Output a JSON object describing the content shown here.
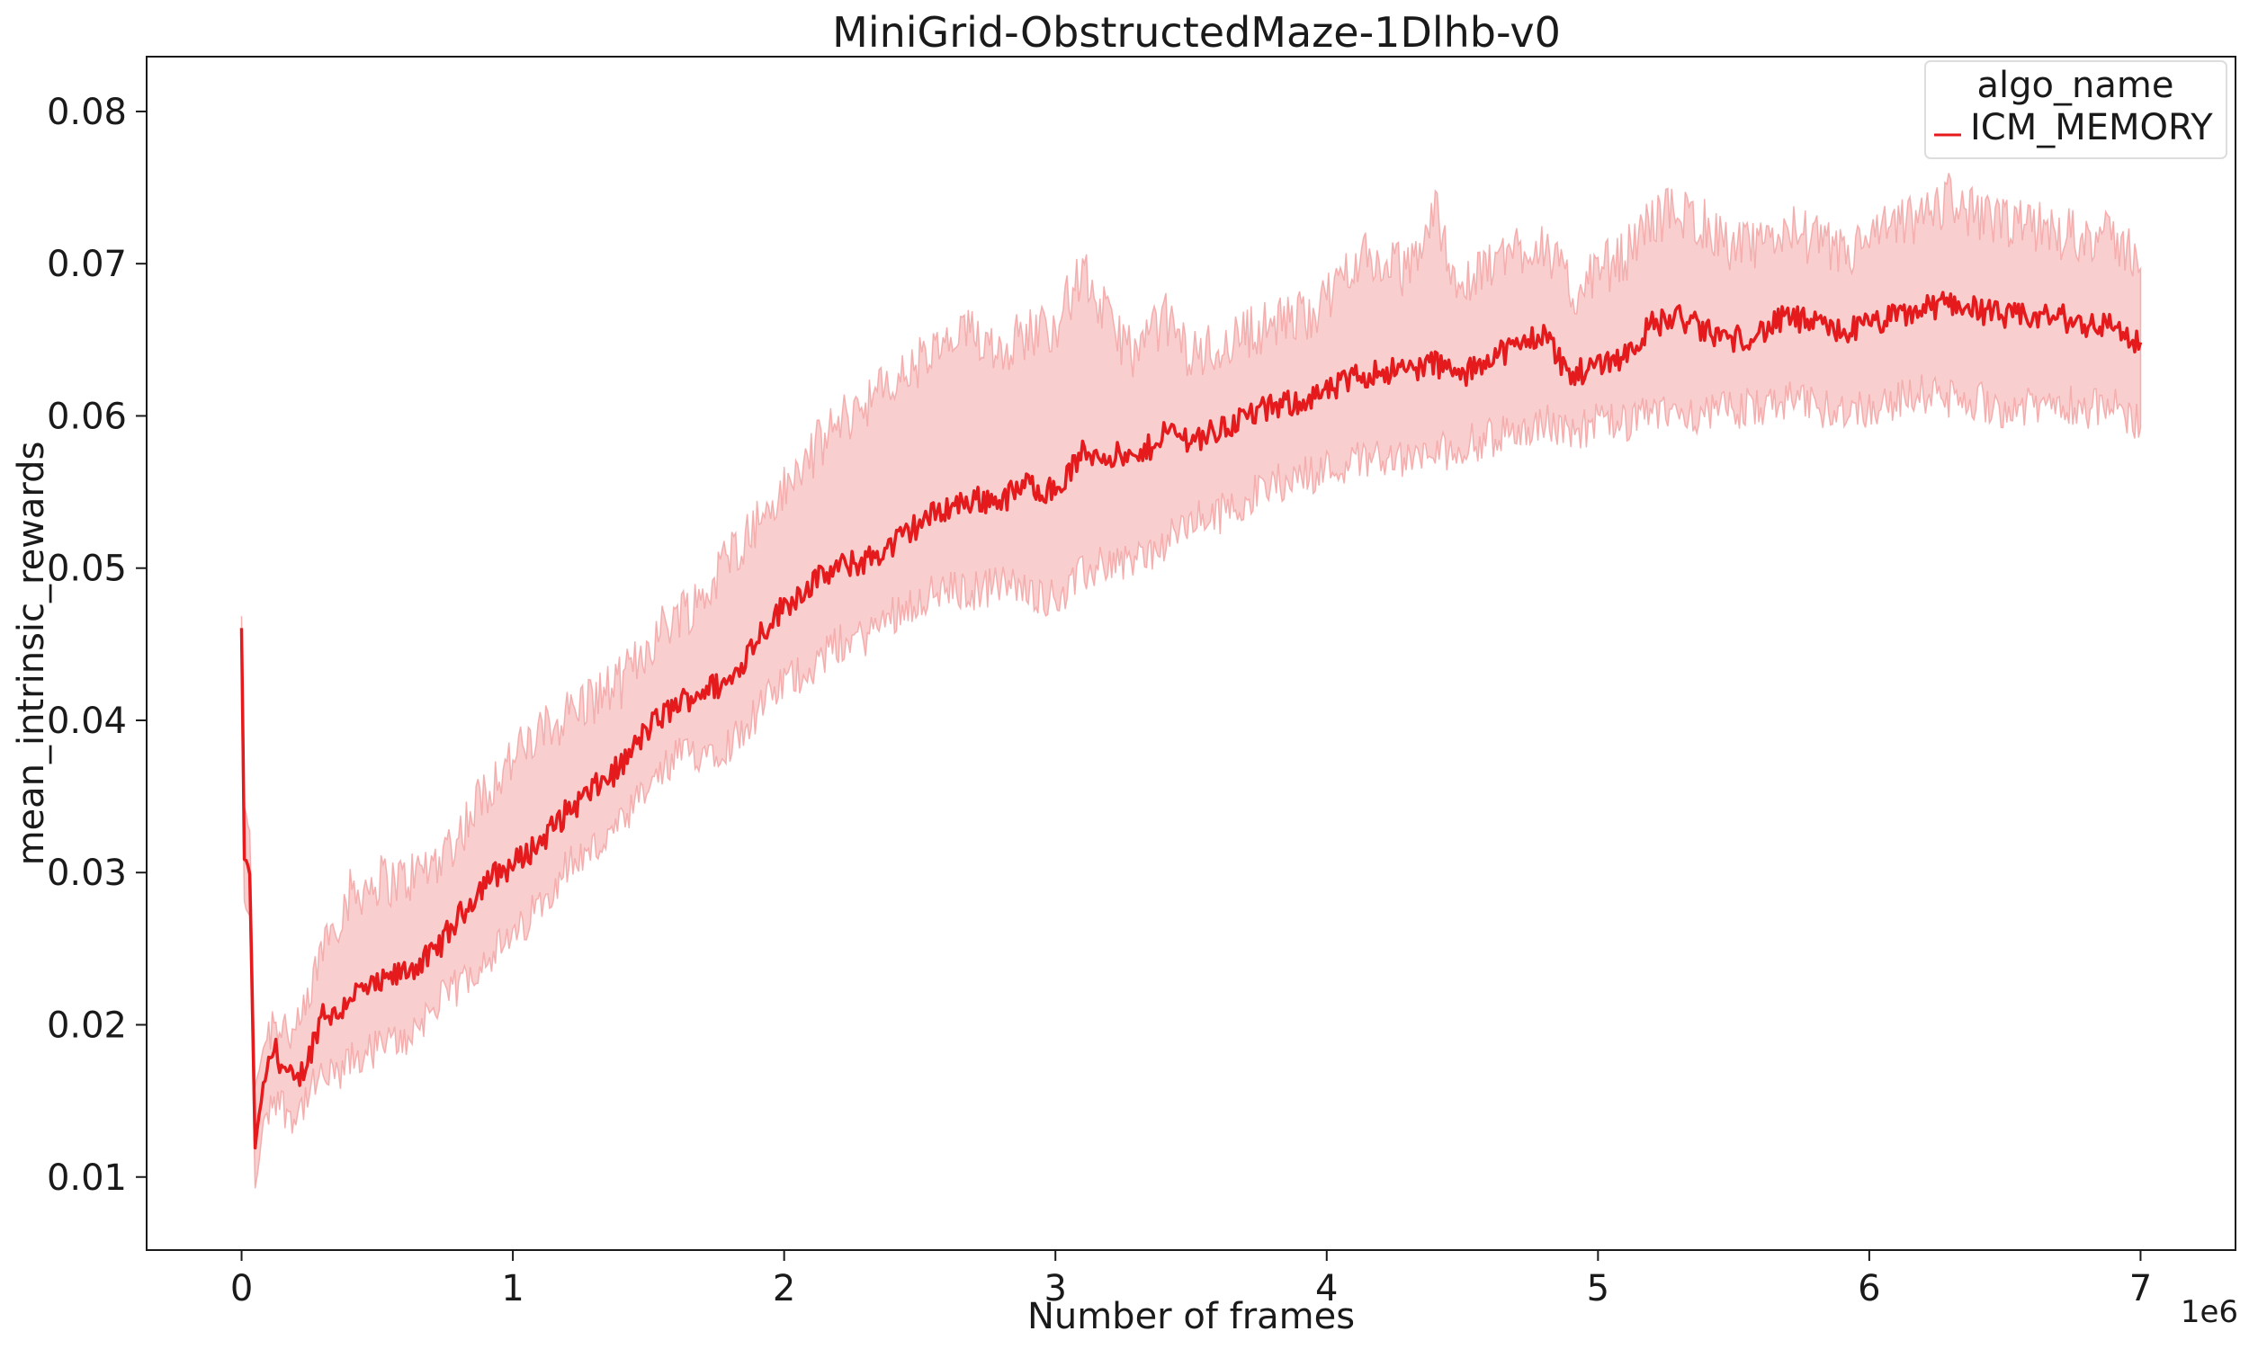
{
  "chart_data": {
    "type": "line",
    "title": "MiniGrid-ObstructedMaze-1Dlhb-v0",
    "xlabel": "Number of frames",
    "ylabel": "mean_intrinsic_rewards",
    "x_offset_label": "1e6",
    "xlim": [
      -0.35,
      7.35
    ],
    "ylim": [
      0.0052,
      0.0836
    ],
    "x_ticks": [
      0,
      1,
      2,
      3,
      4,
      5,
      6,
      7
    ],
    "x_tick_labels": [
      "0",
      "1",
      "2",
      "3",
      "4",
      "5",
      "6",
      "7"
    ],
    "y_ticks": [
      0.01,
      0.02,
      0.03,
      0.04,
      0.05,
      0.06,
      0.07,
      0.08
    ],
    "y_tick_labels": [
      "0.01",
      "0.02",
      "0.03",
      "0.04",
      "0.05",
      "0.06",
      "0.07",
      "0.08"
    ],
    "grid": false,
    "legend": {
      "title": "algo_name",
      "position": "top-right"
    },
    "colors": {
      "line": "#e41a1c",
      "band": "#f4a6a6"
    },
    "series": [
      {
        "name": "ICM_MEMORY",
        "x": [
          0.0,
          0.01,
          0.03,
          0.05,
          0.08,
          0.12,
          0.16,
          0.2,
          0.25,
          0.3,
          0.35,
          0.4,
          0.5,
          0.6,
          0.7,
          0.8,
          0.9,
          1.0,
          1.1,
          1.2,
          1.3,
          1.4,
          1.5,
          1.6,
          1.7,
          1.8,
          1.9,
          2.0,
          2.1,
          2.2,
          2.3,
          2.4,
          2.5,
          2.6,
          2.7,
          2.8,
          2.9,
          3.0,
          3.1,
          3.2,
          3.3,
          3.4,
          3.5,
          3.6,
          3.7,
          3.8,
          3.9,
          4.0,
          4.1,
          4.2,
          4.3,
          4.4,
          4.5,
          4.6,
          4.7,
          4.8,
          4.9,
          5.0,
          5.1,
          5.2,
          5.3,
          5.4,
          5.5,
          5.6,
          5.7,
          5.8,
          5.9,
          6.0,
          6.1,
          6.2,
          6.3,
          6.4,
          6.5,
          6.6,
          6.7,
          6.8,
          6.9,
          7.0
        ],
        "y": [
          0.046,
          0.031,
          0.03,
          0.012,
          0.016,
          0.0185,
          0.017,
          0.016,
          0.018,
          0.021,
          0.0205,
          0.022,
          0.0225,
          0.0235,
          0.0245,
          0.027,
          0.0295,
          0.0305,
          0.032,
          0.034,
          0.0355,
          0.037,
          0.0395,
          0.041,
          0.042,
          0.0425,
          0.0455,
          0.0475,
          0.049,
          0.05,
          0.0505,
          0.0515,
          0.053,
          0.054,
          0.0545,
          0.0545,
          0.0555,
          0.055,
          0.0575,
          0.0575,
          0.057,
          0.059,
          0.0585,
          0.059,
          0.06,
          0.0605,
          0.061,
          0.0615,
          0.0625,
          0.063,
          0.063,
          0.0635,
          0.0625,
          0.064,
          0.0645,
          0.0655,
          0.0625,
          0.0635,
          0.064,
          0.066,
          0.0665,
          0.0655,
          0.065,
          0.0655,
          0.0665,
          0.066,
          0.0655,
          0.066,
          0.0665,
          0.067,
          0.0675,
          0.067,
          0.0665,
          0.0665,
          0.0665,
          0.066,
          0.066,
          0.0645
        ],
        "lower": [
          0.041,
          0.028,
          0.027,
          0.009,
          0.0135,
          0.0155,
          0.0145,
          0.014,
          0.0155,
          0.0165,
          0.0165,
          0.0175,
          0.0185,
          0.019,
          0.021,
          0.0225,
          0.0245,
          0.0255,
          0.028,
          0.0305,
          0.0315,
          0.033,
          0.0355,
          0.0375,
          0.038,
          0.0385,
          0.0405,
          0.0425,
          0.0435,
          0.045,
          0.0455,
          0.047,
          0.048,
          0.0485,
          0.0485,
          0.049,
          0.0485,
          0.048,
          0.0495,
          0.0505,
          0.0505,
          0.0515,
          0.053,
          0.0535,
          0.0545,
          0.0555,
          0.056,
          0.0565,
          0.057,
          0.0575,
          0.057,
          0.0575,
          0.058,
          0.0585,
          0.059,
          0.0595,
          0.059,
          0.0595,
          0.0595,
          0.06,
          0.0605,
          0.06,
          0.0605,
          0.0605,
          0.061,
          0.0605,
          0.0605,
          0.0605,
          0.061,
          0.0615,
          0.061,
          0.061,
          0.0605,
          0.0605,
          0.061,
          0.0605,
          0.0605,
          0.0595
        ],
        "upper": [
          0.047,
          0.034,
          0.033,
          0.016,
          0.0185,
          0.0205,
          0.02,
          0.019,
          0.0215,
          0.0255,
          0.027,
          0.0285,
          0.0295,
          0.0295,
          0.0305,
          0.0325,
          0.0355,
          0.0375,
          0.039,
          0.0405,
          0.0415,
          0.0425,
          0.045,
          0.047,
          0.048,
          0.051,
          0.053,
          0.055,
          0.0575,
          0.0595,
          0.061,
          0.062,
          0.0635,
          0.0645,
          0.0655,
          0.0645,
          0.0655,
          0.066,
          0.0695,
          0.066,
          0.064,
          0.0665,
          0.064,
          0.0645,
          0.0655,
          0.066,
          0.0665,
          0.0675,
          0.0705,
          0.07,
          0.0695,
          0.0735,
          0.068,
          0.07,
          0.071,
          0.0715,
          0.068,
          0.0695,
          0.0705,
          0.073,
          0.0735,
          0.0725,
          0.071,
          0.071,
          0.0725,
          0.0715,
          0.0705,
          0.0715,
          0.0725,
          0.073,
          0.0745,
          0.073,
          0.0725,
          0.0725,
          0.072,
          0.072,
          0.0715,
          0.0705
        ]
      }
    ]
  }
}
